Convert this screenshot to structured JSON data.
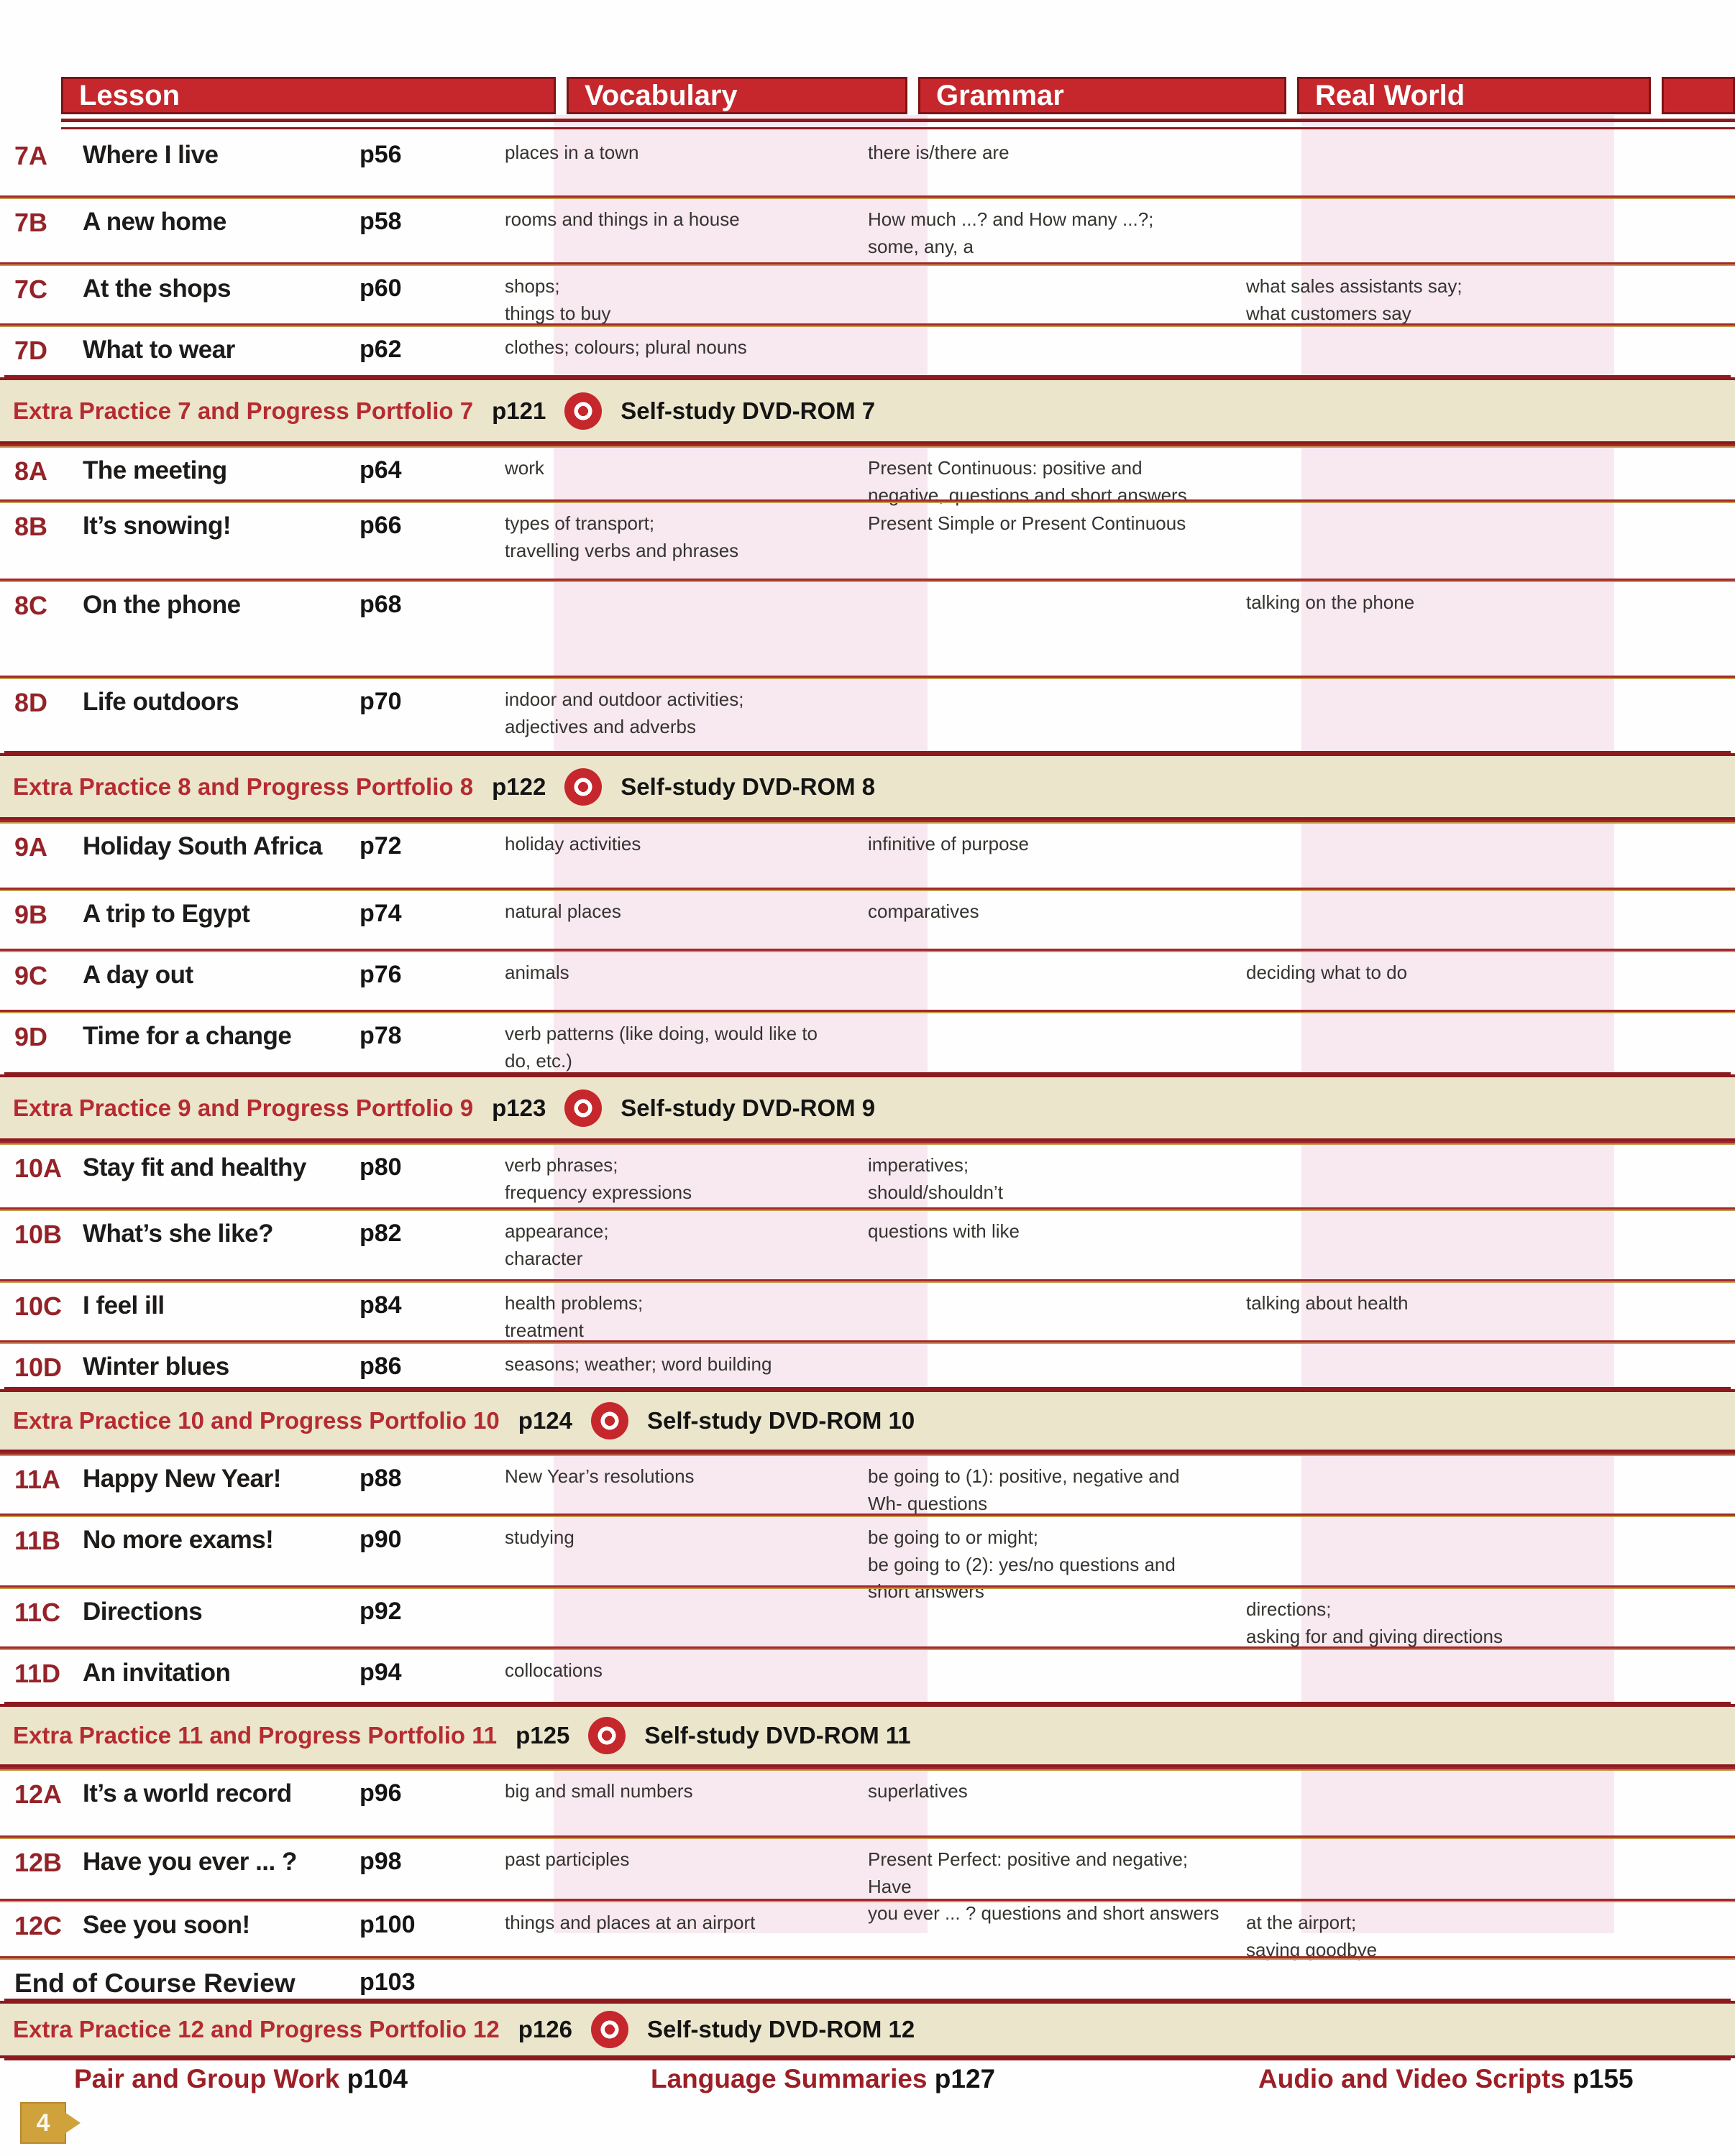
{
  "table": {
    "columns": [
      "Lesson",
      "Vocabulary",
      "Grammar",
      "Real World"
    ],
    "rows": [
      {
        "type": "lesson",
        "code": "7A",
        "title": "Where I live",
        "page": "p56",
        "vocab": "places in a town",
        "grammar": "there is/there are",
        "real_world": ""
      },
      {
        "type": "lesson",
        "code": "7B",
        "title": "A new home",
        "page": "p58",
        "vocab": "rooms and things in a house",
        "grammar": "How much ...? and How many ...?;\nsome, any, a",
        "real_world": ""
      },
      {
        "type": "lesson",
        "code": "7C",
        "title": "At the shops",
        "page": "p60",
        "vocab": "shops;\nthings to buy",
        "grammar": "",
        "real_world": "what sales assistants say;\nwhat customers say"
      },
      {
        "type": "lesson",
        "code": "7D",
        "title": "What to wear",
        "page": "p62",
        "vocab": "clothes; colours; plural nouns",
        "grammar": "",
        "real_world": ""
      },
      {
        "type": "extra",
        "id": "EP7",
        "label": "Extra Practice 7 and Progress Portfolio 7",
        "page": "p121",
        "dvd_label": "Self-study DVD-ROM 7"
      },
      {
        "type": "lesson",
        "code": "8A",
        "title": "The meeting",
        "page": "p64",
        "vocab": "work",
        "grammar": "Present Continuous: positive and\nnegative, questions and short answers",
        "real_world": ""
      },
      {
        "type": "lesson",
        "code": "8B",
        "title": "It’s snowing!",
        "page": "p66",
        "vocab": "types of transport;\ntravelling verbs and phrases",
        "grammar": "Present Simple or Present Continuous",
        "real_world": ""
      },
      {
        "type": "lesson",
        "code": "8C",
        "title": "On the phone",
        "page": "p68",
        "vocab": "",
        "grammar": "",
        "real_world": "talking on the phone"
      },
      {
        "type": "lesson",
        "code": "8D",
        "title": "Life outdoors",
        "page": "p70",
        "vocab": "indoor and outdoor activities;\nadjectives and adverbs",
        "grammar": "",
        "real_world": ""
      },
      {
        "type": "extra",
        "id": "EP8",
        "label": "Extra Practice 8 and Progress Portfolio 8",
        "page": "p122",
        "dvd_label": "Self-study DVD-ROM 8"
      },
      {
        "type": "lesson",
        "code": "9A",
        "title": "Holiday South Africa",
        "page": "p72",
        "vocab": "holiday activities",
        "grammar": "infinitive of purpose",
        "real_world": ""
      },
      {
        "type": "lesson",
        "code": "9B",
        "title": "A trip to Egypt",
        "page": "p74",
        "vocab": "natural places",
        "grammar": "comparatives",
        "real_world": ""
      },
      {
        "type": "lesson",
        "code": "9C",
        "title": "A day out",
        "page": "p76",
        "vocab": "animals",
        "grammar": "",
        "real_world": "deciding what to do"
      },
      {
        "type": "lesson",
        "code": "9D",
        "title": "Time for a change",
        "page": "p78",
        "vocab": "verb patterns (like doing, would like to\ndo, etc.)",
        "grammar": "",
        "real_world": ""
      },
      {
        "type": "extra",
        "id": "EP9",
        "label": "Extra Practice 9 and Progress Portfolio 9",
        "page": "p123",
        "dvd_label": "Self-study DVD-ROM 9"
      },
      {
        "type": "lesson",
        "code": "10A",
        "title": "Stay fit and healthy",
        "page": "p80",
        "vocab": "verb phrases;\nfrequency expressions",
        "grammar": "imperatives;\nshould/shouldn’t",
        "real_world": ""
      },
      {
        "type": "lesson",
        "code": "10B",
        "title": "What’s she like?",
        "page": "p82",
        "vocab": "appearance;\ncharacter",
        "grammar": "questions with like",
        "real_world": ""
      },
      {
        "type": "lesson",
        "code": "10C",
        "title": "I feel ill",
        "page": "p84",
        "vocab": "health problems;\ntreatment",
        "grammar": "",
        "real_world": "talking about health"
      },
      {
        "type": "lesson",
        "code": "10D",
        "title": "Winter blues",
        "page": "p86",
        "vocab": "seasons; weather; word building",
        "grammar": "",
        "real_world": ""
      },
      {
        "type": "extra",
        "id": "EP10",
        "label": "Extra Practice 10 and Progress Portfolio 10",
        "page": "p124",
        "dvd_label": "Self-study DVD-ROM 10"
      },
      {
        "type": "lesson",
        "code": "11A",
        "title": "Happy New Year!",
        "page": "p88",
        "vocab": "New Year’s resolutions",
        "grammar": "be going to (1): positive, negative and\nWh- questions",
        "real_world": ""
      },
      {
        "type": "lesson",
        "code": "11B",
        "title": "No more exams!",
        "page": "p90",
        "vocab": "studying",
        "grammar": "be going to or might;\nbe going to (2): yes/no questions and\nshort answers",
        "real_world": ""
      },
      {
        "type": "lesson",
        "code": "11C",
        "title": "Directions",
        "page": "p92",
        "vocab": "",
        "grammar": "",
        "real_world": "directions;\nasking for and giving directions"
      },
      {
        "type": "lesson",
        "code": "11D",
        "title": "An invitation",
        "page": "p94",
        "vocab": "collocations",
        "grammar": "",
        "real_world": ""
      },
      {
        "type": "extra",
        "id": "EP11",
        "label": "Extra Practice 11 and Progress Portfolio 11",
        "page": "p125",
        "dvd_label": "Self-study DVD-ROM 11"
      },
      {
        "type": "lesson",
        "code": "12A",
        "title": "It’s a world record",
        "page": "p96",
        "vocab": "big and small numbers",
        "grammar": "superlatives",
        "real_world": ""
      },
      {
        "type": "lesson",
        "code": "12B",
        "title": "Have you ever ... ?",
        "page": "p98",
        "vocab": "past participles",
        "grammar": "Present Perfect: positive and negative; Have\nyou ever ... ? questions and short answers",
        "real_world": ""
      },
      {
        "type": "lesson",
        "code": "12C",
        "title": "See you soon!",
        "page": "p100",
        "vocab": "things and places at an airport",
        "grammar": "",
        "real_world": "at the airport;\nsaying goodbye"
      },
      {
        "type": "review",
        "id": "REV",
        "title": "End of Course Review",
        "page": "p103"
      },
      {
        "type": "extra",
        "id": "EP12",
        "label": "Extra Practice 12 and Progress Portfolio 12",
        "page": "p126",
        "dvd_label": "Self-study DVD-ROM 12"
      }
    ]
  },
  "footer": {
    "items": [
      {
        "label": "Pair and Group Work",
        "page": "p104"
      },
      {
        "label": "Language Summaries",
        "page": "p127"
      },
      {
        "label": "Audio and Video Scripts",
        "page": "p155"
      }
    ]
  },
  "page_number": "4",
  "colors": {
    "header_red": "#c5272c",
    "rule_dark_red": "#8c1a1f",
    "divider_red": "#a3282c",
    "divider_gold": "#c59a4a",
    "lesson_code_red": "#942328",
    "extra_label_red": "#b52b31",
    "band_beige": "#ebe6cb",
    "pink_tint": "#f8e9f1",
    "footer_red": "#9c1f26",
    "tab_gold": "#d0a23c"
  }
}
